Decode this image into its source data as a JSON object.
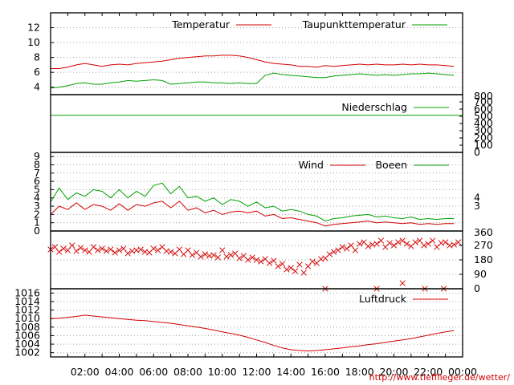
{
  "colors": {
    "red": "#d40000",
    "green": "#00a000",
    "axis": "#000000",
    "grid": "#a0a0a0"
  },
  "x_time_ticks": [
    "02:00",
    "04:00",
    "06:00",
    "08:00",
    "10:00",
    "12:00",
    "14:00",
    "16:00",
    "18:00",
    "20:00",
    "22:00",
    "00:00"
  ],
  "credit": "http://www.tiefflieger.de/wetter/",
  "chart_data": [
    {
      "type": "line",
      "panel": "temperature",
      "ylim": [
        3,
        14
      ],
      "y_ticks": [
        "4",
        "6",
        "8",
        "10",
        "12"
      ],
      "grid": true,
      "legend_position": "top-right",
      "x_hours": [
        0,
        0.5,
        1,
        1.5,
        2,
        2.5,
        3,
        3.5,
        4,
        4.5,
        5,
        5.5,
        6,
        6.5,
        7,
        7.5,
        8,
        8.5,
        9,
        9.5,
        10,
        10.5,
        11,
        11.5,
        12,
        12.5,
        13,
        13.5,
        14,
        14.5,
        15,
        15.5,
        16,
        16.5,
        17,
        17.5,
        18,
        18.5,
        19,
        19.5,
        20,
        20.5,
        21,
        21.5,
        22,
        22.5,
        23,
        23.5
      ],
      "series": [
        {
          "name": "Temperatur",
          "color": "red",
          "values": [
            6.5,
            6.5,
            6.7,
            7.0,
            7.2,
            7.0,
            6.8,
            7.0,
            7.1,
            7.0,
            7.2,
            7.3,
            7.4,
            7.5,
            7.7,
            7.9,
            8.0,
            8.1,
            8.2,
            8.2,
            8.3,
            8.3,
            8.2,
            8.0,
            7.7,
            7.4,
            7.2,
            7.1,
            7.0,
            6.8,
            6.8,
            6.7,
            6.9,
            6.8,
            6.9,
            7.0,
            7.1,
            7.0,
            7.1,
            7.0,
            7.0,
            7.1,
            7.0,
            7.1,
            7.0,
            7.0,
            6.9,
            6.8
          ]
        },
        {
          "name": "Taupunkttemperatur",
          "color": "green",
          "values": [
            3.9,
            4.0,
            4.2,
            4.5,
            4.6,
            4.4,
            4.4,
            4.6,
            4.7,
            4.9,
            4.8,
            4.9,
            5.0,
            4.9,
            4.4,
            4.5,
            4.6,
            4.7,
            4.7,
            4.6,
            4.6,
            4.5,
            4.6,
            4.5,
            4.5,
            5.6,
            5.9,
            5.7,
            5.6,
            5.5,
            5.4,
            5.3,
            5.3,
            5.5,
            5.6,
            5.7,
            5.8,
            5.7,
            5.6,
            5.7,
            5.6,
            5.7,
            5.8,
            5.8,
            5.9,
            5.8,
            5.7,
            5.6
          ]
        }
      ]
    },
    {
      "type": "line",
      "panel": "precipitation",
      "ylim": [
        0,
        800
      ],
      "y_ticks": [
        "0",
        "100",
        "200",
        "300",
        "400",
        "500",
        "600",
        "700",
        "800"
      ],
      "legend_position": "top-right",
      "x_hours": [
        0,
        24
      ],
      "series": [
        {
          "name": "Niederschlag",
          "color": "green",
          "values": [
            515,
            515
          ]
        }
      ]
    },
    {
      "type": "line",
      "panel": "wind",
      "ylim": [
        0,
        9.5
      ],
      "y_ticks": [
        "0",
        "1",
        "2",
        "3",
        "4",
        "5",
        "6",
        "7",
        "8",
        "9"
      ],
      "right_ticks": [
        "3",
        "4"
      ],
      "grid": true,
      "legend_position": "top-right",
      "x_hours": [
        0,
        0.5,
        1,
        1.5,
        2,
        2.5,
        3,
        3.5,
        4,
        4.5,
        5,
        5.5,
        6,
        6.5,
        7,
        7.5,
        8,
        8.5,
        9,
        9.5,
        10,
        10.5,
        11,
        11.5,
        12,
        12.5,
        13,
        13.5,
        14,
        14.5,
        15,
        15.5,
        16,
        16.5,
        17,
        17.5,
        18,
        18.5,
        19,
        19.5,
        20,
        20.5,
        21,
        21.5,
        22,
        22.5,
        23,
        23.5
      ],
      "series": [
        {
          "name": "Wind",
          "color": "red",
          "values": [
            2.0,
            3.0,
            2.6,
            3.4,
            2.6,
            3.2,
            3.0,
            2.5,
            3.3,
            2.5,
            3.2,
            3.0,
            3.4,
            3.6,
            2.8,
            3.6,
            2.5,
            2.8,
            2.2,
            2.5,
            2.0,
            2.3,
            2.4,
            2.2,
            2.4,
            1.8,
            2.0,
            1.5,
            1.6,
            1.4,
            1.2,
            1.0,
            0.6,
            0.8,
            0.9,
            1.0,
            1.1,
            1.2,
            1.0,
            1.1,
            1.0,
            0.9,
            1.0,
            0.8,
            0.9,
            0.8,
            0.9,
            0.9
          ]
        },
        {
          "name": "Boeen",
          "color": "green",
          "values": [
            3.5,
            5.2,
            3.8,
            4.6,
            4.2,
            5.0,
            4.8,
            4.0,
            5.0,
            4.0,
            4.8,
            4.2,
            5.5,
            5.8,
            4.5,
            5.4,
            4.0,
            4.2,
            3.6,
            4.0,
            3.2,
            3.8,
            3.6,
            3.0,
            3.5,
            2.8,
            3.0,
            2.4,
            2.6,
            2.4,
            2.0,
            1.8,
            1.2,
            1.5,
            1.6,
            1.8,
            1.9,
            2.0,
            1.7,
            1.8,
            1.6,
            1.5,
            1.7,
            1.4,
            1.5,
            1.4,
            1.5,
            1.5
          ]
        }
      ]
    },
    {
      "type": "scatter",
      "panel": "wind_direction",
      "ylim": [
        0,
        360
      ],
      "y_ticks": [
        "0",
        "90",
        "180",
        "270",
        "360"
      ],
      "grid": true,
      "marker": "x",
      "series": [
        {
          "name": "",
          "color": "red",
          "x": [
            0.0,
            0.25,
            0.5,
            0.75,
            1.0,
            1.25,
            1.5,
            1.75,
            2.0,
            2.25,
            2.5,
            2.75,
            3.0,
            3.25,
            3.5,
            3.75,
            4.0,
            4.25,
            4.5,
            4.75,
            5.0,
            5.25,
            5.5,
            5.75,
            6.0,
            6.25,
            6.5,
            6.75,
            7.0,
            7.25,
            7.5,
            7.75,
            8.0,
            8.25,
            8.5,
            8.75,
            9.0,
            9.25,
            9.5,
            9.75,
            10.0,
            10.25,
            10.5,
            10.75,
            11.0,
            11.25,
            11.5,
            11.75,
            12.0,
            12.25,
            12.5,
            12.75,
            13.0,
            13.25,
            13.5,
            13.75,
            14.0,
            14.25,
            14.5,
            14.75,
            15.0,
            15.25,
            15.5,
            15.75,
            16.0,
            16.25,
            16.5,
            16.75,
            17.0,
            17.25,
            17.5,
            17.75,
            18.0,
            18.25,
            18.5,
            18.75,
            19.0,
            19.25,
            19.5,
            19.75,
            20.0,
            20.25,
            20.5,
            20.75,
            21.0,
            21.25,
            21.5,
            21.75,
            22.0,
            22.25,
            22.5,
            22.75,
            23.0,
            23.25,
            23.5,
            23.75,
            16.0,
            19.0,
            20.5,
            21.8,
            22.9
          ],
          "y": [
            245,
            260,
            230,
            250,
            240,
            270,
            235,
            255,
            240,
            230,
            260,
            240,
            250,
            235,
            245,
            225,
            240,
            250,
            220,
            235,
            240,
            245,
            230,
            225,
            250,
            240,
            260,
            235,
            230,
            220,
            245,
            215,
            240,
            210,
            225,
            200,
            215,
            205,
            210,
            195,
            240,
            200,
            210,
            220,
            190,
            205,
            180,
            195,
            180,
            170,
            185,
            160,
            175,
            140,
            155,
            120,
            130,
            110,
            150,
            100,
            140,
            170,
            160,
            185,
            190,
            215,
            230,
            240,
            260,
            250,
            270,
            240,
            280,
            290,
            265,
            275,
            280,
            300,
            260,
            285,
            270,
            290,
            300,
            280,
            265,
            290,
            300,
            270,
            280,
            300,
            260,
            285,
            290,
            270,
            275,
            290,
            0,
            0,
            35,
            0,
            0
          ]
        }
      ]
    },
    {
      "type": "line",
      "panel": "pressure",
      "ylim": [
        1001,
        1017
      ],
      "y_ticks": [
        "1002",
        "1004",
        "1006",
        "1008",
        "1010",
        "1012",
        "1014",
        "1016"
      ],
      "grid": true,
      "legend_position": "top-right",
      "x_hours": [
        0,
        0.5,
        1,
        1.5,
        2,
        2.5,
        3,
        3.5,
        4,
        4.5,
        5,
        5.5,
        6,
        6.5,
        7,
        7.5,
        8,
        8.5,
        9,
        9.5,
        10,
        10.5,
        11,
        11.5,
        12,
        12.5,
        13,
        13.5,
        14,
        14.5,
        15,
        15.5,
        16,
        16.5,
        17,
        17.5,
        18,
        18.5,
        19,
        19.5,
        20,
        20.5,
        21,
        21.5,
        22,
        22.5,
        23,
        23.5
      ],
      "series": [
        {
          "name": "Luftdruck",
          "color": "red",
          "values": [
            1010.0,
            1010.1,
            1010.3,
            1010.5,
            1010.8,
            1010.6,
            1010.4,
            1010.2,
            1010.0,
            1009.8,
            1009.6,
            1009.5,
            1009.3,
            1009.1,
            1008.9,
            1008.6,
            1008.3,
            1008.0,
            1007.7,
            1007.3,
            1006.9,
            1006.5,
            1006.1,
            1005.6,
            1005.0,
            1004.4,
            1003.7,
            1003.1,
            1002.7,
            1002.5,
            1002.4,
            1002.5,
            1002.7,
            1002.9,
            1003.1,
            1003.4,
            1003.6,
            1003.9,
            1004.1,
            1004.4,
            1004.7,
            1005.0,
            1005.3,
            1005.7,
            1006.1,
            1006.5,
            1006.9,
            1007.2
          ]
        }
      ]
    }
  ]
}
